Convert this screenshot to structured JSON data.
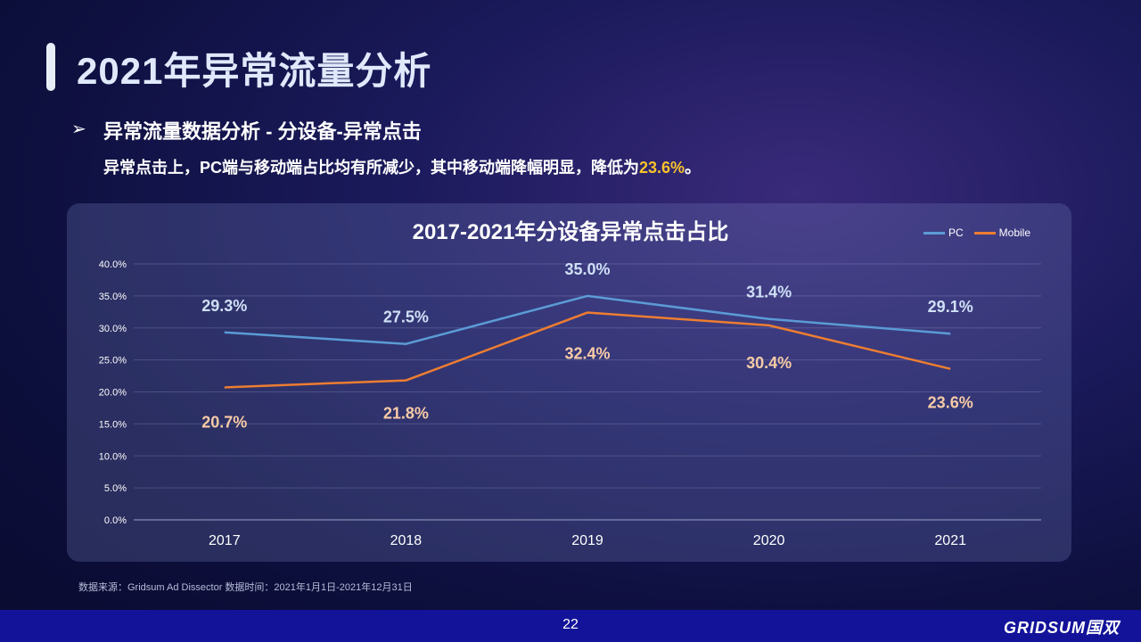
{
  "page": {
    "title": "2021年异常流量分析",
    "section_heading": "异常流量数据分析 - 分设备-异常点击",
    "description_prefix": "异常点击上，PC端与移动端占比均有所减少，其中移动端降幅明显，降低为",
    "description_highlight": "23.6%",
    "description_suffix": "。",
    "source": "数据来源：Gridsum Ad Dissector 数据时间：2021年1月1日-2021年12月31日",
    "page_number": "22",
    "brand": "GRIDSUM国双",
    "highlight_color": "#f8c22b"
  },
  "chart_data": {
    "type": "line",
    "title": "2017-2021年分设备异常点击占比",
    "categories": [
      "2017",
      "2018",
      "2019",
      "2020",
      "2021"
    ],
    "series": [
      {
        "name": "PC",
        "values": [
          29.3,
          27.5,
          35.0,
          31.4,
          29.1
        ],
        "color": "#5b9bd5",
        "label_color": "#cfe0f6"
      },
      {
        "name": "Mobile",
        "values": [
          20.7,
          21.8,
          32.4,
          30.4,
          23.6
        ],
        "color": "#ed7d31",
        "label_color": "#f8cba6"
      }
    ],
    "ylim": [
      0,
      40
    ],
    "yticks": [
      "0.0%",
      "5.0%",
      "10.0%",
      "15.0%",
      "20.0%",
      "25.0%",
      "30.0%",
      "35.0%",
      "40.0%"
    ],
    "data_labels": {
      "PC": [
        "29.3%",
        "27.5%",
        "35.0%",
        "31.4%",
        "29.1%"
      ],
      "Mobile": [
        "20.7%",
        "21.8%",
        "32.4%",
        "30.4%",
        "23.6%"
      ]
    },
    "legend_position": "top-right",
    "grid": true
  }
}
